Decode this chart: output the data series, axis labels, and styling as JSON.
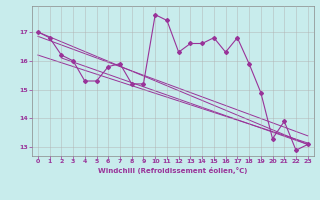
{
  "xlabel": "Windchill (Refroidissement éolien,°C)",
  "background_color": "#c8ecec",
  "line_color": "#993399",
  "grid_color": "#b0b0b0",
  "xlim": [
    -0.5,
    23.5
  ],
  "ylim": [
    12.7,
    17.9
  ],
  "yticks": [
    13,
    14,
    15,
    16,
    17
  ],
  "xticks": [
    0,
    1,
    2,
    3,
    4,
    5,
    6,
    7,
    8,
    9,
    10,
    11,
    12,
    13,
    14,
    15,
    16,
    17,
    18,
    19,
    20,
    21,
    22,
    23
  ],
  "main_x": [
    0,
    1,
    2,
    3,
    4,
    5,
    6,
    7,
    8,
    9,
    10,
    11,
    12,
    13,
    14,
    15,
    16,
    17,
    18,
    19,
    20,
    21,
    22,
    23
  ],
  "main_y": [
    17.0,
    16.8,
    16.2,
    16.0,
    15.3,
    15.3,
    15.8,
    15.9,
    15.2,
    15.2,
    17.6,
    17.4,
    16.3,
    16.6,
    16.6,
    16.8,
    16.3,
    16.8,
    15.9,
    14.9,
    13.3,
    13.9,
    12.9,
    13.1
  ],
  "trend1_x": [
    0,
    23
  ],
  "trend1_y": [
    17.0,
    13.1
  ],
  "trend2_x": [
    0,
    23
  ],
  "trend2_y": [
    16.2,
    13.15
  ],
  "trend3_x": [
    0,
    23
  ],
  "trend3_y": [
    16.85,
    13.4
  ],
  "trend4_x": [
    2,
    23
  ],
  "trend4_y": [
    16.1,
    13.1
  ]
}
